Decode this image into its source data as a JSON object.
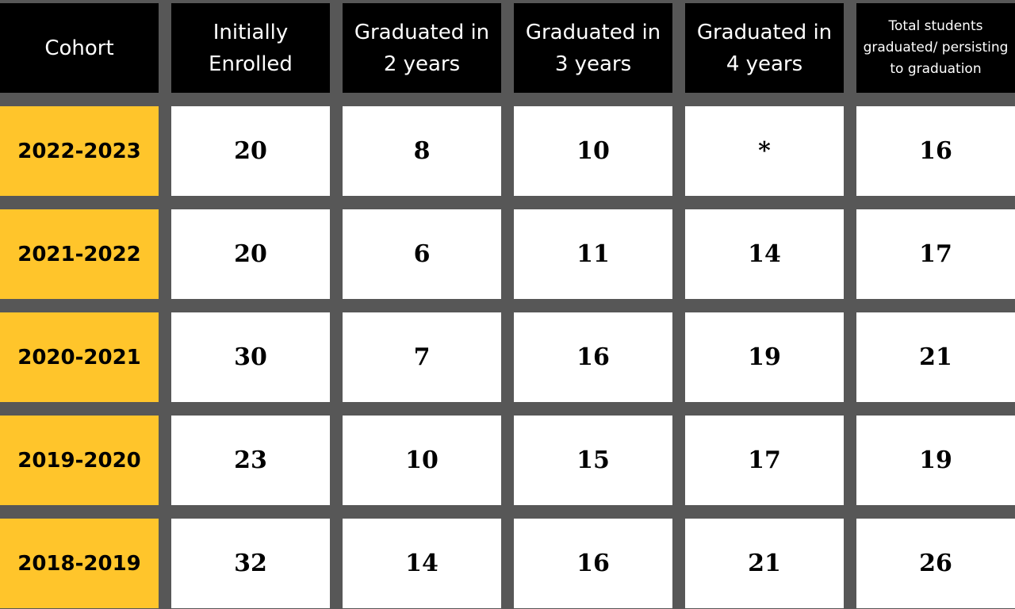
{
  "colors": {
    "header_bg": "#000000",
    "cohort_bg": "#FFC52B",
    "cell_bg": "#FFFFFF",
    "grid_bg": "#575757"
  },
  "chart_data": {
    "type": "table",
    "columns": [
      "Cohort",
      "Initially Enrolled",
      "Graduated in 2 years",
      "Graduated in 3 years",
      "Graduated in 4 years",
      "Total students graduated/ persisting to graduation"
    ],
    "rows": [
      [
        "2022-2023",
        "20",
        "8",
        "10",
        "*",
        "16"
      ],
      [
        "2021-2022",
        "20",
        "6",
        "11",
        "14",
        "17"
      ],
      [
        "2020-2021",
        "30",
        "7",
        "16",
        "19",
        "21"
      ],
      [
        "2019-2020",
        "23",
        "10",
        "15",
        "17",
        "19"
      ],
      [
        "2018-2019",
        "32",
        "14",
        "16",
        "21",
        "26"
      ]
    ]
  }
}
